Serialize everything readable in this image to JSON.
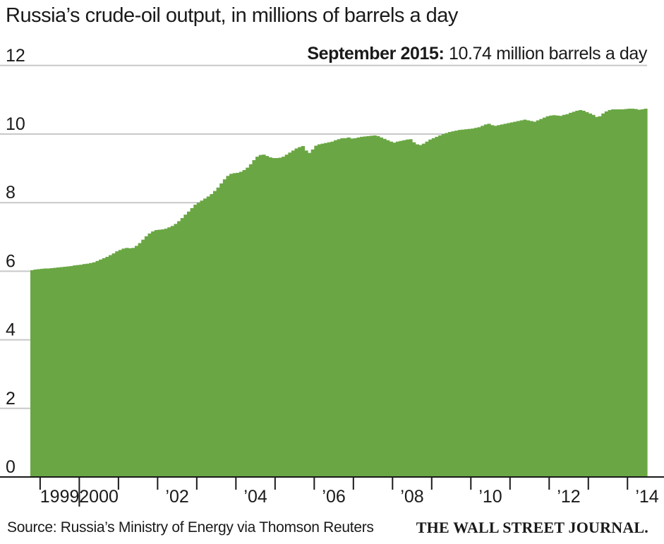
{
  "title": "Russia’s crude-oil output, in millions of barrels a day",
  "annotation": {
    "bold": "September 2015:",
    "text": " 10.74 million barrels a day"
  },
  "source": "Source: Russia’s Ministry of Energy via Thomson Reuters",
  "logo": "THE WALL STREET JOURNAL.",
  "colors": {
    "bar": "#6aa744",
    "grid": "#c8c8c8",
    "axis": "#1a1a1a"
  },
  "chart_data": {
    "type": "area",
    "title": "Russia’s crude-oil output, in millions of barrels a day",
    "unit": "millions of barrels a day",
    "frequency": "monthly",
    "start": "1998-10",
    "end": "2015-09",
    "ylim": [
      0,
      12
    ],
    "yticks": [
      0,
      2,
      4,
      6,
      8,
      10,
      12
    ],
    "xtick_labels": [
      "1999",
      "2000",
      "’02",
      "’04",
      "’06",
      "’08",
      "’10",
      "’12",
      "’14"
    ],
    "grid": true,
    "series": [
      {
        "values": [
          6.03,
          6.05,
          6.06,
          6.07,
          6.08,
          6.08,
          6.09,
          6.1,
          6.11,
          6.12,
          6.13,
          6.14,
          6.15,
          6.17,
          6.18,
          6.19,
          6.21,
          6.22,
          6.24,
          6.26,
          6.3,
          6.34,
          6.38,
          6.42,
          6.47,
          6.52,
          6.58,
          6.62,
          6.66,
          6.68,
          6.67,
          6.68,
          6.74,
          6.82,
          6.92,
          7.02,
          7.1,
          7.16,
          7.2,
          7.21,
          7.22,
          7.24,
          7.28,
          7.32,
          7.38,
          7.46,
          7.55,
          7.65,
          7.74,
          7.84,
          7.94,
          8.0,
          8.06,
          8.12,
          8.18,
          8.25,
          8.34,
          8.44,
          8.56,
          8.68,
          8.78,
          8.84,
          8.86,
          8.87,
          8.9,
          8.95,
          9.02,
          9.12,
          9.24,
          9.34,
          9.39,
          9.4,
          9.36,
          9.32,
          9.3,
          9.3,
          9.31,
          9.34,
          9.4,
          9.46,
          9.52,
          9.58,
          9.62,
          9.65,
          9.52,
          9.45,
          9.55,
          9.66,
          9.7,
          9.72,
          9.74,
          9.76,
          9.78,
          9.82,
          9.85,
          9.88,
          9.88,
          9.9,
          9.87,
          9.88,
          9.9,
          9.92,
          9.93,
          9.94,
          9.95,
          9.96,
          9.94,
          9.9,
          9.86,
          9.82,
          9.78,
          9.75,
          9.78,
          9.8,
          9.82,
          9.84,
          9.85,
          9.76,
          9.7,
          9.68,
          9.72,
          9.78,
          9.84,
          9.88,
          9.92,
          9.96,
          10.0,
          10.03,
          10.06,
          10.08,
          10.1,
          10.12,
          10.13,
          10.14,
          10.15,
          10.16,
          10.18,
          10.2,
          10.24,
          10.28,
          10.3,
          10.26,
          10.24,
          10.26,
          10.28,
          10.3,
          10.32,
          10.34,
          10.36,
          10.38,
          10.4,
          10.42,
          10.4,
          10.38,
          10.36,
          10.4,
          10.44,
          10.48,
          10.52,
          10.54,
          10.55,
          10.54,
          10.53,
          10.56,
          10.58,
          10.62,
          10.65,
          10.68,
          10.7,
          10.68,
          10.64,
          10.6,
          10.56,
          10.5,
          10.52,
          10.6,
          10.66,
          10.7,
          10.72,
          10.72,
          10.72,
          10.72,
          10.73,
          10.74,
          10.74,
          10.73,
          10.71,
          10.72,
          10.74
        ]
      }
    ]
  }
}
